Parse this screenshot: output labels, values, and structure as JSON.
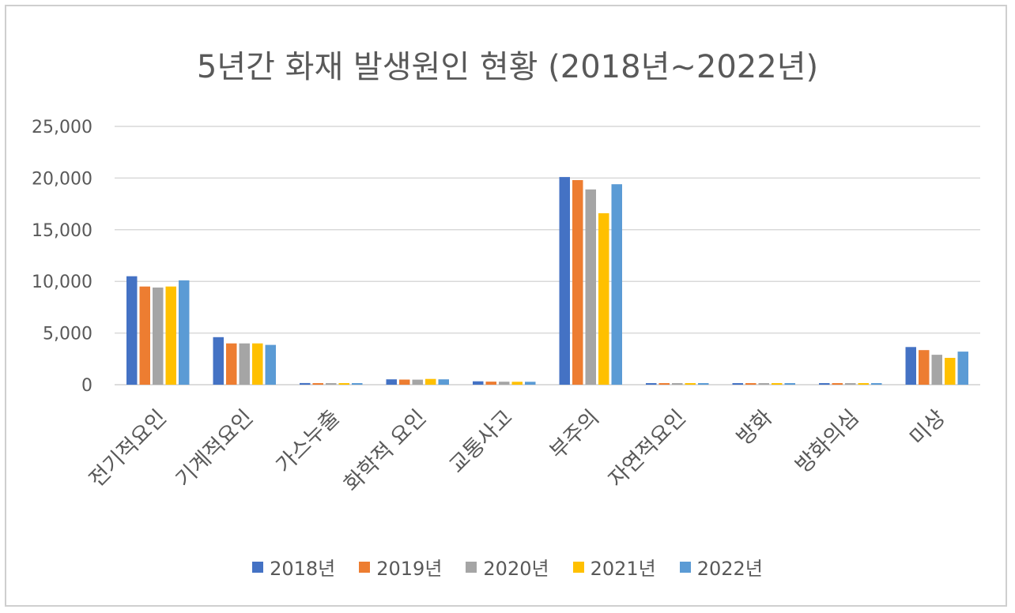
{
  "chart_data": {
    "type": "bar",
    "title": "5년간 화재 발생원인 현황 (2018년~2022년)",
    "categories": [
      "전기적요인",
      "기계적요인",
      "가스누출",
      "화학적 요인",
      "교통사고",
      "부주의",
      "자연적요인",
      "방화",
      "방화의심",
      "미상"
    ],
    "series": [
      {
        "name": "2018년",
        "color": "#4472C4",
        "values": [
          10500,
          4600,
          160,
          520,
          330,
          20100,
          90,
          150,
          120,
          3650
        ]
      },
      {
        "name": "2019년",
        "color": "#ED7D31",
        "values": [
          9500,
          4000,
          150,
          500,
          300,
          19800,
          80,
          130,
          110,
          3350
        ]
      },
      {
        "name": "2020년",
        "color": "#A5A5A5",
        "values": [
          9400,
          4000,
          140,
          490,
          290,
          18900,
          80,
          120,
          90,
          2900
        ]
      },
      {
        "name": "2021년",
        "color": "#FFC000",
        "values": [
          9500,
          4000,
          130,
          560,
          280,
          16600,
          100,
          100,
          60,
          2600
        ]
      },
      {
        "name": "2022년",
        "color": "#5B9BD5",
        "values": [
          10100,
          3850,
          120,
          520,
          280,
          19400,
          60,
          110,
          70,
          3200
        ]
      }
    ],
    "ylim": [
      0,
      25000
    ],
    "yticks": [
      0,
      5000,
      10000,
      15000,
      20000,
      25000
    ],
    "ytick_labels": [
      "0",
      "5,000",
      "10,000",
      "15,000",
      "20,000",
      "25,000"
    ],
    "grid": true,
    "legend_position": "bottom"
  }
}
